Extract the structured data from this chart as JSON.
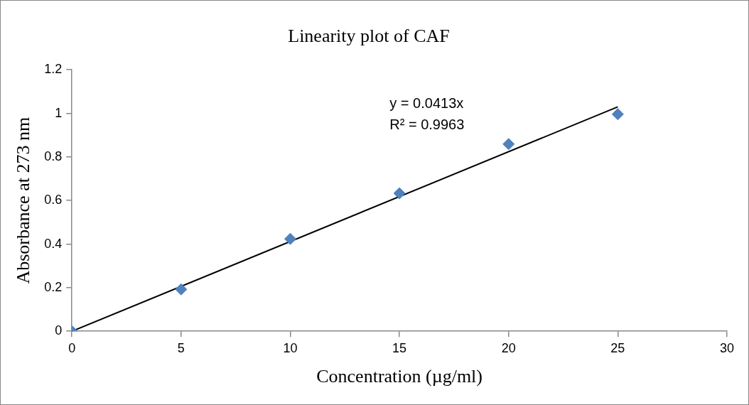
{
  "chart_data": {
    "type": "scatter",
    "title": "Linearity plot of CAF",
    "xlabel": "Concentration (µg/ml)",
    "ylabel": "Absorbance at 273 nm",
    "xlim": [
      0,
      30
    ],
    "xticks": [
      0,
      5,
      10,
      15,
      20,
      25,
      30
    ],
    "ylim": [
      0,
      1.2
    ],
    "yticks": [
      0,
      {
        "value": 0.2,
        "label": "0.2"
      },
      {
        "value": 0.4,
        "label": "0.4"
      },
      {
        "value": 0.6,
        "label": "0.6"
      },
      {
        "value": 0.8,
        "label": "0.8"
      },
      1,
      {
        "value": 1.2,
        "label": "1.2"
      }
    ],
    "grid": false,
    "legend": false,
    "series": [
      {
        "type": "scatter",
        "color": "#4f81bd",
        "marker": "diamond",
        "x": [
          0,
          5,
          10,
          15,
          20,
          25
        ],
        "values": [
          0,
          0.192,
          0.424,
          0.633,
          0.859,
          0.996
        ]
      },
      {
        "type": "line",
        "color": "#000000",
        "marker": "none",
        "x": [
          0,
          25
        ],
        "values": [
          0,
          1.03
        ]
      }
    ],
    "annotations": [
      "y = 0.0413x",
      "R² = 0.9963"
    ]
  }
}
